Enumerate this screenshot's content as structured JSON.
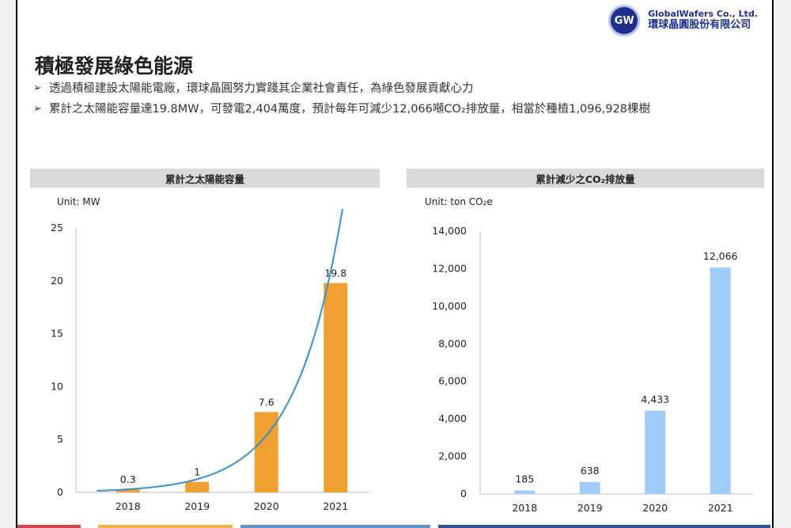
{
  "logo": {
    "badge": "GW",
    "name_en": "GlobalWafers Co., Ltd.",
    "name_zh": "環球晶圓股份有限公司"
  },
  "slide": {
    "title": "積極發展綠色能源",
    "bullets": [
      "透過積極建設太陽能電廠，環球晶圓努力實踐其企業社會責任，為綠色發展貢獻心力",
      "累計之太陽能容量達19.8MW，可發電2,404萬度，預計每年可減少12,066噸CO₂排放量，相當於種植1,096,928棵樹"
    ]
  },
  "colors": {
    "orange": "#f0a030",
    "blue": "#9fcdf7",
    "trend": "#3a8fd0"
  },
  "chart_data": [
    {
      "type": "bar",
      "title": "累計之太陽能容量",
      "unit_label": "Unit: MW",
      "categories": [
        "2018",
        "2019",
        "2020",
        "2021"
      ],
      "values": [
        0.3,
        1,
        7.6,
        19.8
      ],
      "data_labels": [
        "0.3",
        "1",
        "7.6",
        "19.8"
      ],
      "ylim": [
        0,
        25
      ],
      "yticks": [
        "0",
        "5",
        "10",
        "15",
        "20",
        "25"
      ],
      "trendline": "exponential",
      "grid": false,
      "color": "#f0a030"
    },
    {
      "type": "bar",
      "title": "累計減少之CO₂排放量",
      "unit_label": "Unit: ton CO₂e",
      "categories": [
        "2018",
        "2019",
        "2020",
        "2021"
      ],
      "values": [
        185,
        638,
        4433,
        12066
      ],
      "data_labels": [
        "185",
        "638",
        "4,433",
        "12,066"
      ],
      "ylim": [
        0,
        14000
      ],
      "yticks": [
        "0",
        "2,000",
        "4,000",
        "6,000",
        "8,000",
        "10,000",
        "12,000",
        "14,000"
      ],
      "grid": false,
      "color": "#9fcdf7"
    }
  ]
}
